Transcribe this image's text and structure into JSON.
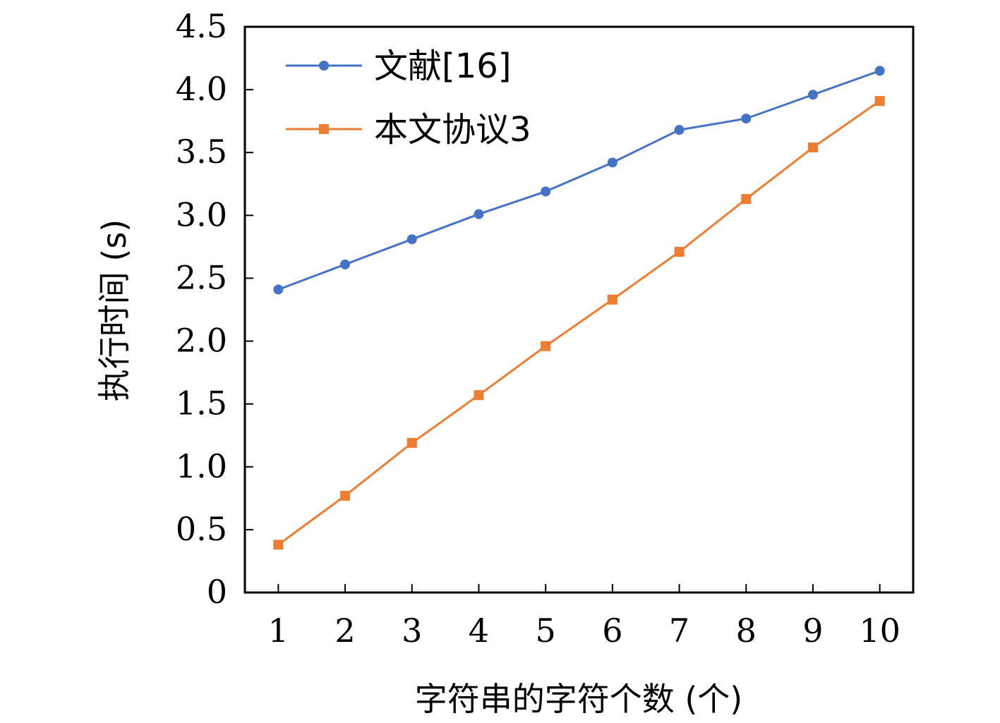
{
  "chart_data": {
    "type": "line",
    "xlabel": "字符串的字符个数 (个)",
    "ylabel": "执行时间 (s)",
    "categories": [
      "1",
      "2",
      "3",
      "4",
      "5",
      "6",
      "7",
      "8",
      "9",
      "10"
    ],
    "x": [
      1,
      2,
      3,
      4,
      5,
      6,
      7,
      8,
      9,
      10
    ],
    "xlim": [
      0.5,
      10.5
    ],
    "ylim": [
      0,
      4.5
    ],
    "yticks": [
      0,
      0.5,
      1.0,
      1.5,
      2.0,
      2.5,
      3.0,
      3.5,
      4.0,
      4.5
    ],
    "ytick_labels": [
      "0",
      "0.5",
      "1.0",
      "1.5",
      "2.0",
      "2.5",
      "3.0",
      "3.5",
      "4.0",
      "4.5"
    ],
    "grid": false,
    "legend_position": "top-left",
    "series": [
      {
        "name": "文献[16]",
        "color": "#4472C4",
        "marker": "circle",
        "values": [
          2.41,
          2.61,
          2.81,
          3.01,
          3.19,
          3.42,
          3.68,
          3.77,
          3.96,
          4.15
        ]
      },
      {
        "name": "本文协议3",
        "color": "#ED7D31",
        "marker": "square",
        "values": [
          0.38,
          0.77,
          1.19,
          1.57,
          1.96,
          2.33,
          2.71,
          3.13,
          3.54,
          3.91
        ]
      }
    ]
  }
}
